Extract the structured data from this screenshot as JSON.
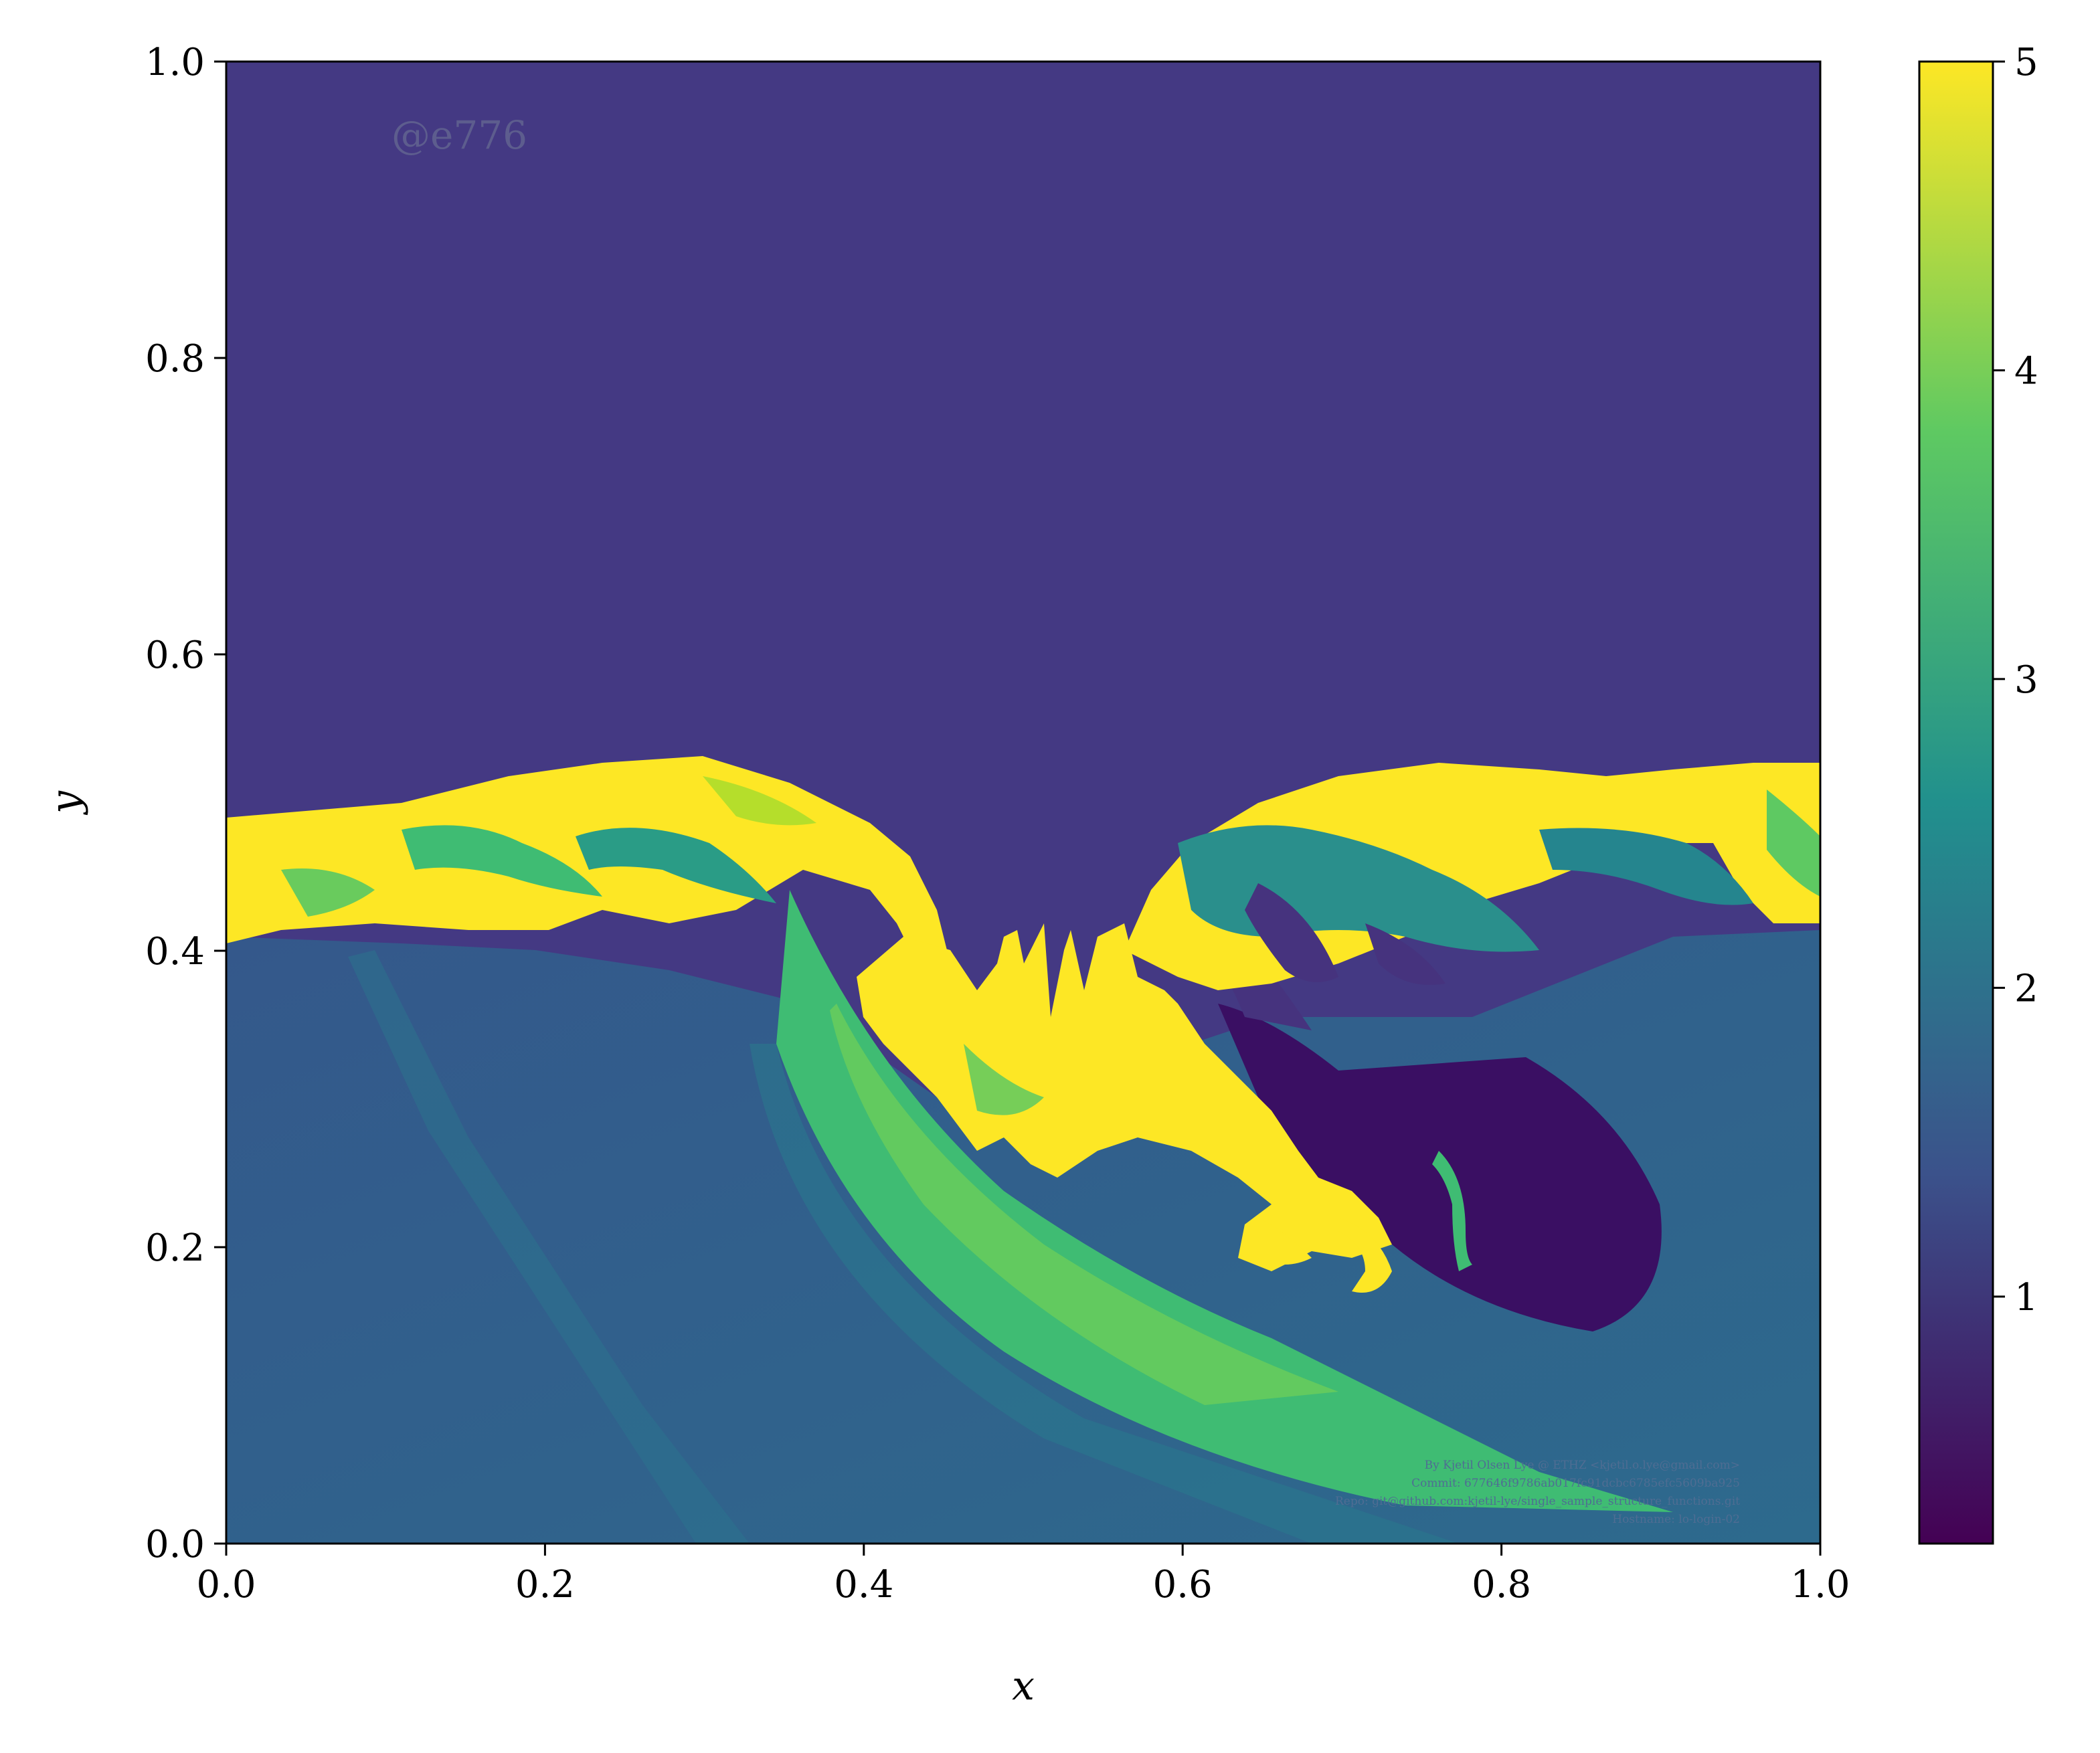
{
  "chart_data": {
    "type": "heatmap",
    "title": "",
    "xlabel": "x",
    "ylabel": "y",
    "xlim": [
      0.0,
      1.0
    ],
    "ylim": [
      0.0,
      1.0
    ],
    "x_ticks": [
      0.0,
      0.2,
      0.4,
      0.6,
      0.8,
      1.0
    ],
    "x_tick_labels": [
      "0.0",
      "0.2",
      "0.4",
      "0.6",
      "0.8",
      "1.0"
    ],
    "y_ticks": [
      0.0,
      0.2,
      0.4,
      0.6,
      0.8,
      1.0
    ],
    "y_tick_labels": [
      "0.0",
      "0.2",
      "0.4",
      "0.6",
      "0.8",
      "1.0"
    ],
    "colormap": "viridis",
    "colorbar": {
      "range": [
        0.2,
        5.0
      ],
      "ticks": [
        1,
        2,
        3,
        4,
        5
      ],
      "tick_labels": [
        "1",
        "2",
        "3",
        "4",
        "5"
      ],
      "placement": "right"
    },
    "field_description_values": {
      "upper_region_value": 1.0,
      "mixing_layer_max_value": 5.0,
      "lower_region_value": 1.8
    },
    "watermark": "@e776",
    "credits": [
      "By Kjetil Olsen Lye @ ETHZ <kjetil.o.lye@gmail.com>",
      "Commit: 677646f9786ab017fc91dcbc6785efc5609ba925",
      "Repo: git@github.com:kjetil-lye/single_sample_structure_functions.git",
      "Hostname: lo-login-02"
    ],
    "grid": false
  },
  "colors": {
    "top_fill": "#443983",
    "lower_fill": "#31568c",
    "yellow": "#fde725",
    "green": "#5ec962",
    "teal": "#21908d",
    "dark": "#440154"
  }
}
